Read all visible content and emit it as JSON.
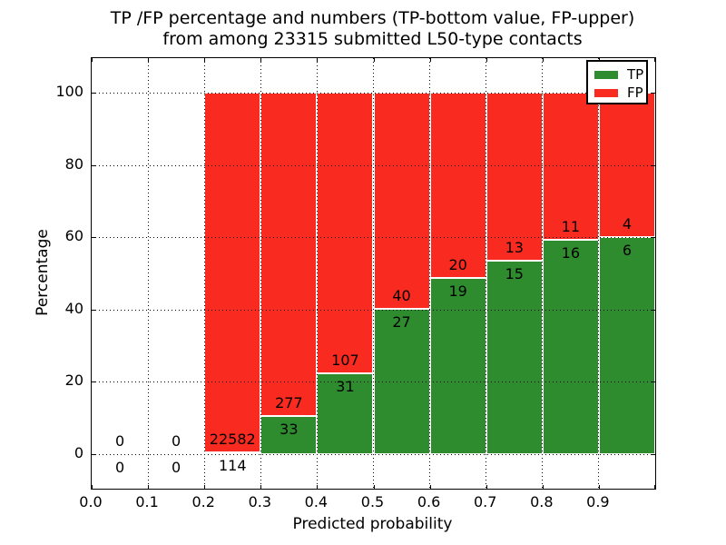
{
  "figure": {
    "title_line1": "TP /FP percentage and numbers (TP-bottom value, FP-upper)",
    "title_line2": "from among 23315 submitted L50-type contacts"
  },
  "chart_data": {
    "type": "bar",
    "stacked": true,
    "normalized_to_percent": true,
    "title": "TP /FP percentage and numbers (TP-bottom value, FP-upper)\nfrom among 23315 submitted L50-type contacts",
    "xlabel": "Predicted probability",
    "ylabel": "Percentage",
    "total_submitted": 23315,
    "xlim": [
      0.0,
      1.0
    ],
    "ylim": [
      -9.5,
      109.5
    ],
    "x_tick_labels": [
      "0.0",
      "0.1",
      "0.2",
      "0.3",
      "0.4",
      "0.5",
      "0.6",
      "0.7",
      "0.8",
      "0.9"
    ],
    "y_ticks": [
      0,
      20,
      40,
      60,
      80,
      100
    ],
    "grid": "dotted both axes",
    "legend_position": "upper right",
    "bin_width": 0.1,
    "categories": [
      "0.0-0.1",
      "0.1-0.2",
      "0.2-0.3",
      "0.3-0.4",
      "0.4-0.5",
      "0.5-0.6",
      "0.6-0.7",
      "0.7-0.8",
      "0.8-0.9",
      "0.9-1.0"
    ],
    "series": [
      {
        "name": "TP",
        "color": "#2e8b2e",
        "counts": [
          0,
          0,
          114,
          33,
          31,
          27,
          19,
          15,
          16,
          6
        ]
      },
      {
        "name": "FP",
        "color": "#f92a20",
        "counts": [
          0,
          0,
          22582,
          277,
          107,
          40,
          20,
          13,
          11,
          4
        ]
      }
    ],
    "tp_percent_of_bin": [
      0,
      0,
      0.5,
      10.6,
      22.5,
      40.3,
      48.7,
      53.6,
      59.3,
      60.0
    ],
    "annotation_rule": "FP count printed above TP/FP boundary, TP count printed below it"
  },
  "legend": {
    "items": [
      {
        "label": "TP",
        "color": "#2e8b2e"
      },
      {
        "label": "FP",
        "color": "#f92a20"
      }
    ]
  }
}
